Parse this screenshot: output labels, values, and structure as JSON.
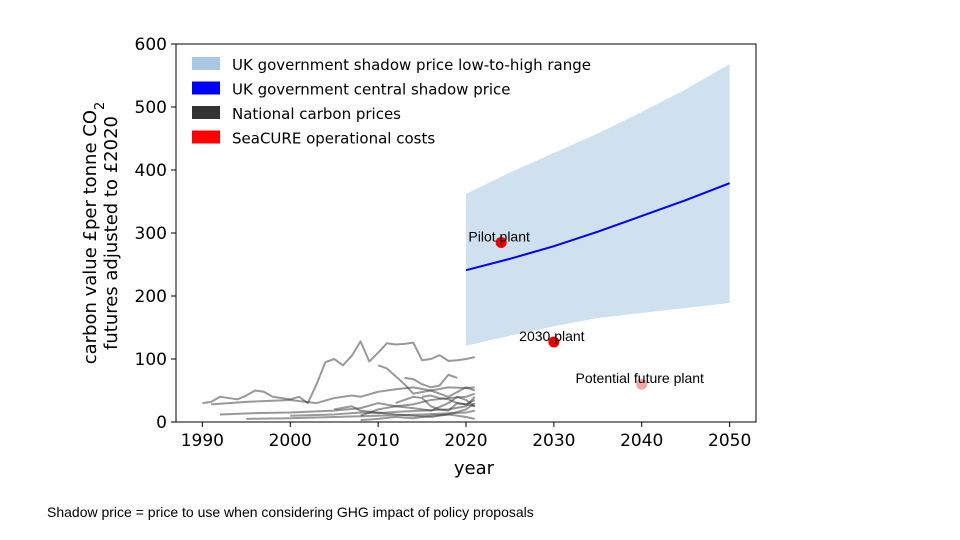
{
  "chart_data": {
    "type": "line",
    "xlabel": "year",
    "ylabel_line1": "carbon value £per tonne CO",
    "ylabel_subscript": "2",
    "ylabel_line2": "futures adjusted to £2020",
    "xlim": [
      1987,
      2053
    ],
    "ylim": [
      0,
      600
    ],
    "xticks": [
      1990,
      2000,
      2010,
      2020,
      2030,
      2040,
      2050
    ],
    "yticks": [
      0,
      100,
      200,
      300,
      400,
      500,
      600
    ],
    "grid": false,
    "legend_position": "upper-left",
    "legend": [
      {
        "label": "UK government shadow price low-to-high range",
        "color": "#a9c8e6"
      },
      {
        "label": "UK government central shadow price",
        "color": "#0000ff"
      },
      {
        "label": "National carbon prices",
        "color": "#333333"
      },
      {
        "label": "SeaCURE operational costs",
        "color": "#ff0000"
      }
    ],
    "shadow_range": {
      "color": "#cfe0ef",
      "x": [
        2020,
        2025,
        2030,
        2035,
        2040,
        2045,
        2050
      ],
      "low": [
        121,
        137,
        152,
        165,
        173,
        181,
        189
      ],
      "high": [
        362,
        396,
        427,
        458,
        492,
        528,
        568
      ]
    },
    "central_price": {
      "color": "#0000ff",
      "x": [
        2020,
        2025,
        2030,
        2035,
        2040,
        2045,
        2050
      ],
      "y": [
        241,
        259,
        279,
        302,
        327,
        352,
        379
      ]
    },
    "national_prices": {
      "color": "#333333",
      "series": [
        {
          "x": [
            1990,
            1991,
            1992,
            1993,
            1994,
            1995,
            1996,
            1997,
            1998,
            1999,
            2000,
            2001,
            2002,
            2003,
            2004,
            2005,
            2006,
            2007,
            2008,
            2009,
            2010,
            2011,
            2012,
            2013,
            2014,
            2015,
            2016,
            2017,
            2018,
            2019,
            2020,
            2021
          ],
          "y": [
            30,
            32,
            40,
            38,
            36,
            42,
            50,
            48,
            40,
            38,
            36,
            40,
            30,
            60,
            95,
            100,
            90,
            105,
            128,
            96,
            110,
            125,
            123,
            124,
            126,
            98,
            100,
            106,
            97,
            98,
            100,
            103
          ]
        },
        {
          "x": [
            1991,
            1995,
            2000,
            2003,
            2005,
            2007,
            2008,
            2010,
            2012,
            2014,
            2016,
            2018,
            2020,
            2021
          ],
          "y": [
            28,
            32,
            35,
            30,
            38,
            42,
            40,
            48,
            52,
            55,
            50,
            55,
            54,
            55
          ]
        },
        {
          "x": [
            1992,
            1996,
            2000,
            2005,
            2008,
            2010,
            2012,
            2014,
            2016,
            2018,
            2020,
            2021
          ],
          "y": [
            12,
            14,
            15,
            18,
            22,
            30,
            25,
            28,
            35,
            38,
            40,
            45
          ]
        },
        {
          "x": [
            2008,
            2010,
            2012,
            2014,
            2016,
            2018,
            2019,
            2020,
            2021
          ],
          "y": [
            10,
            20,
            25,
            22,
            18,
            30,
            40,
            35,
            25
          ]
        },
        {
          "x": [
            2010,
            2011,
            2013,
            2014,
            2016,
            2018,
            2020,
            2021
          ],
          "y": [
            90,
            85,
            60,
            45,
            50,
            40,
            55,
            50
          ]
        },
        {
          "x": [
            2013,
            2014,
            2015,
            2016,
            2017,
            2018,
            2019
          ],
          "y": [
            70,
            68,
            60,
            55,
            58,
            75,
            70
          ]
        },
        {
          "x": [
            1995,
            2000,
            2005,
            2010,
            2015,
            2020,
            2021
          ],
          "y": [
            5,
            6,
            8,
            10,
            12,
            15,
            18
          ]
        },
        {
          "x": [
            2000,
            2005,
            2008,
            2010,
            2012,
            2015,
            2018,
            2020,
            2021
          ],
          "y": [
            10,
            12,
            15,
            14,
            16,
            18,
            20,
            25,
            40
          ]
        },
        {
          "x": [
            2005,
            2007,
            2008,
            2010,
            2012,
            2014,
            2016,
            2018,
            2020,
            2021
          ],
          "y": [
            20,
            25,
            18,
            15,
            12,
            10,
            8,
            12,
            20,
            30
          ]
        },
        {
          "x": [
            2008,
            2010,
            2012,
            2014,
            2016,
            2018,
            2020,
            2021
          ],
          "y": [
            3,
            5,
            8,
            6,
            10,
            12,
            8,
            5
          ]
        },
        {
          "x": [
            2012,
            2013,
            2014,
            2015,
            2016,
            2017,
            2018,
            2019,
            2020,
            2021
          ],
          "y": [
            30,
            35,
            40,
            38,
            25,
            20,
            18,
            30,
            28,
            35
          ]
        },
        {
          "x": [
            2015,
            2016,
            2017,
            2018,
            2019,
            2020,
            2021
          ],
          "y": [
            40,
            42,
            38,
            36,
            30,
            28,
            25
          ]
        }
      ]
    },
    "seacure_points": [
      {
        "label": "Pilot plant",
        "x": 2024,
        "y": 285,
        "color": "#ee0000"
      },
      {
        "label": "2030 plant",
        "x": 2030,
        "y": 127,
        "color": "#ee0000"
      },
      {
        "label": "Potential future plant",
        "x": 2040,
        "y": 60,
        "color": "#f4a6a6"
      }
    ]
  },
  "footnote": "Shadow price = price to use when considering GHG impact of policy proposals"
}
